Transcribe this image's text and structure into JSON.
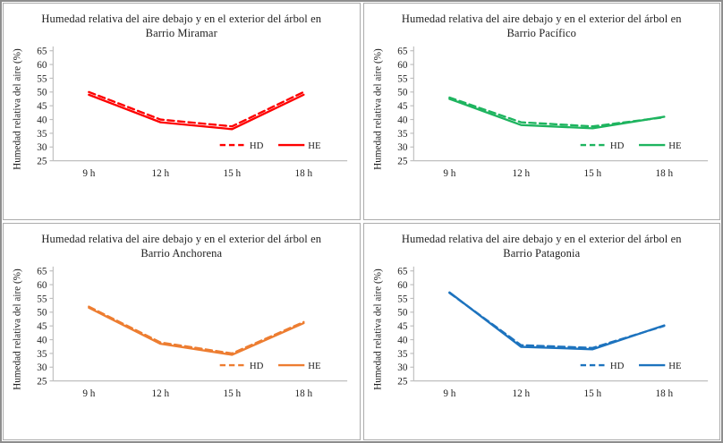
{
  "page": {
    "background": "#ffffff",
    "frame_border_color": "#8d8d8d",
    "panel_border_color": "#acacac",
    "axis_color": "#bfbfbf",
    "text_color": "#1f1f1f"
  },
  "chart_data": [
    {
      "type": "line",
      "title_line1": "Humedad relativa del aire debajo y en el exterior del árbol en",
      "title_line2": "Barrio Miramar",
      "ylabel": "Humedad relativa del aire (%)",
      "xlabel": "",
      "categories": [
        "9 h",
        "12 h",
        "15 h",
        "18 h"
      ],
      "ylim": [
        25,
        65
      ],
      "ytick_step": 5,
      "grid": false,
      "legend_position": "inside-bottom-right",
      "color": "#fe0000",
      "series": [
        {
          "name": "HD",
          "line_style": "dashed",
          "values": [
            50,
            40,
            37.5,
            50
          ]
        },
        {
          "name": "HE",
          "line_style": "solid",
          "values": [
            49,
            39,
            36.5,
            49
          ]
        }
      ]
    },
    {
      "type": "line",
      "title_line1": "Humedad relativa del aire debajo y en el exterior del árbol en",
      "title_line2": "Barrio Pacífico",
      "ylabel": "Humedad relativa del aire (%)",
      "xlabel": "",
      "categories": [
        "9 h",
        "12 h",
        "15 h",
        "18 h"
      ],
      "ylim": [
        25,
        65
      ],
      "ytick_step": 5,
      "grid": false,
      "legend_position": "inside-bottom-right",
      "color": "#1eb45f",
      "series": [
        {
          "name": "HD",
          "line_style": "dashed",
          "values": [
            48,
            39,
            37.5,
            40.8
          ]
        },
        {
          "name": "HE",
          "line_style": "solid",
          "values": [
            47.5,
            38,
            36.8,
            41
          ]
        }
      ]
    },
    {
      "type": "line",
      "title_line1": "Humedad relativa del aire debajo y en el exterior del árbol en",
      "title_line2": "Barrio Anchorena",
      "ylabel": "Humedad relativa del aire (%)",
      "xlabel": "",
      "categories": [
        "9 h",
        "12 h",
        "15 h",
        "18 h"
      ],
      "ylim": [
        25,
        65
      ],
      "ytick_step": 5,
      "grid": false,
      "legend_position": "inside-bottom-right",
      "color": "#ed7d31",
      "series": [
        {
          "name": "HD",
          "line_style": "dashed",
          "values": [
            52,
            39,
            35,
            46.4
          ]
        },
        {
          "name": "HE",
          "line_style": "solid",
          "values": [
            51.6,
            38.5,
            34.5,
            46
          ]
        }
      ]
    },
    {
      "type": "line",
      "title_line1": "Humedad relativa del aire debajo y en el exterior del árbol en",
      "title_line2": "Barrio Patagonia",
      "ylabel": "Humedad relativa del aire (%)",
      "xlabel": "",
      "categories": [
        "9 h",
        "12 h",
        "15 h",
        "18 h"
      ],
      "ylim": [
        25,
        65
      ],
      "ytick_step": 5,
      "grid": false,
      "legend_position": "inside-bottom-right",
      "color": "#1d73be",
      "series": [
        {
          "name": "HD",
          "line_style": "dashed",
          "values": [
            57,
            38,
            37,
            45
          ]
        },
        {
          "name": "HE",
          "line_style": "solid",
          "values": [
            57.2,
            37.4,
            36.5,
            45.2
          ]
        }
      ]
    }
  ]
}
